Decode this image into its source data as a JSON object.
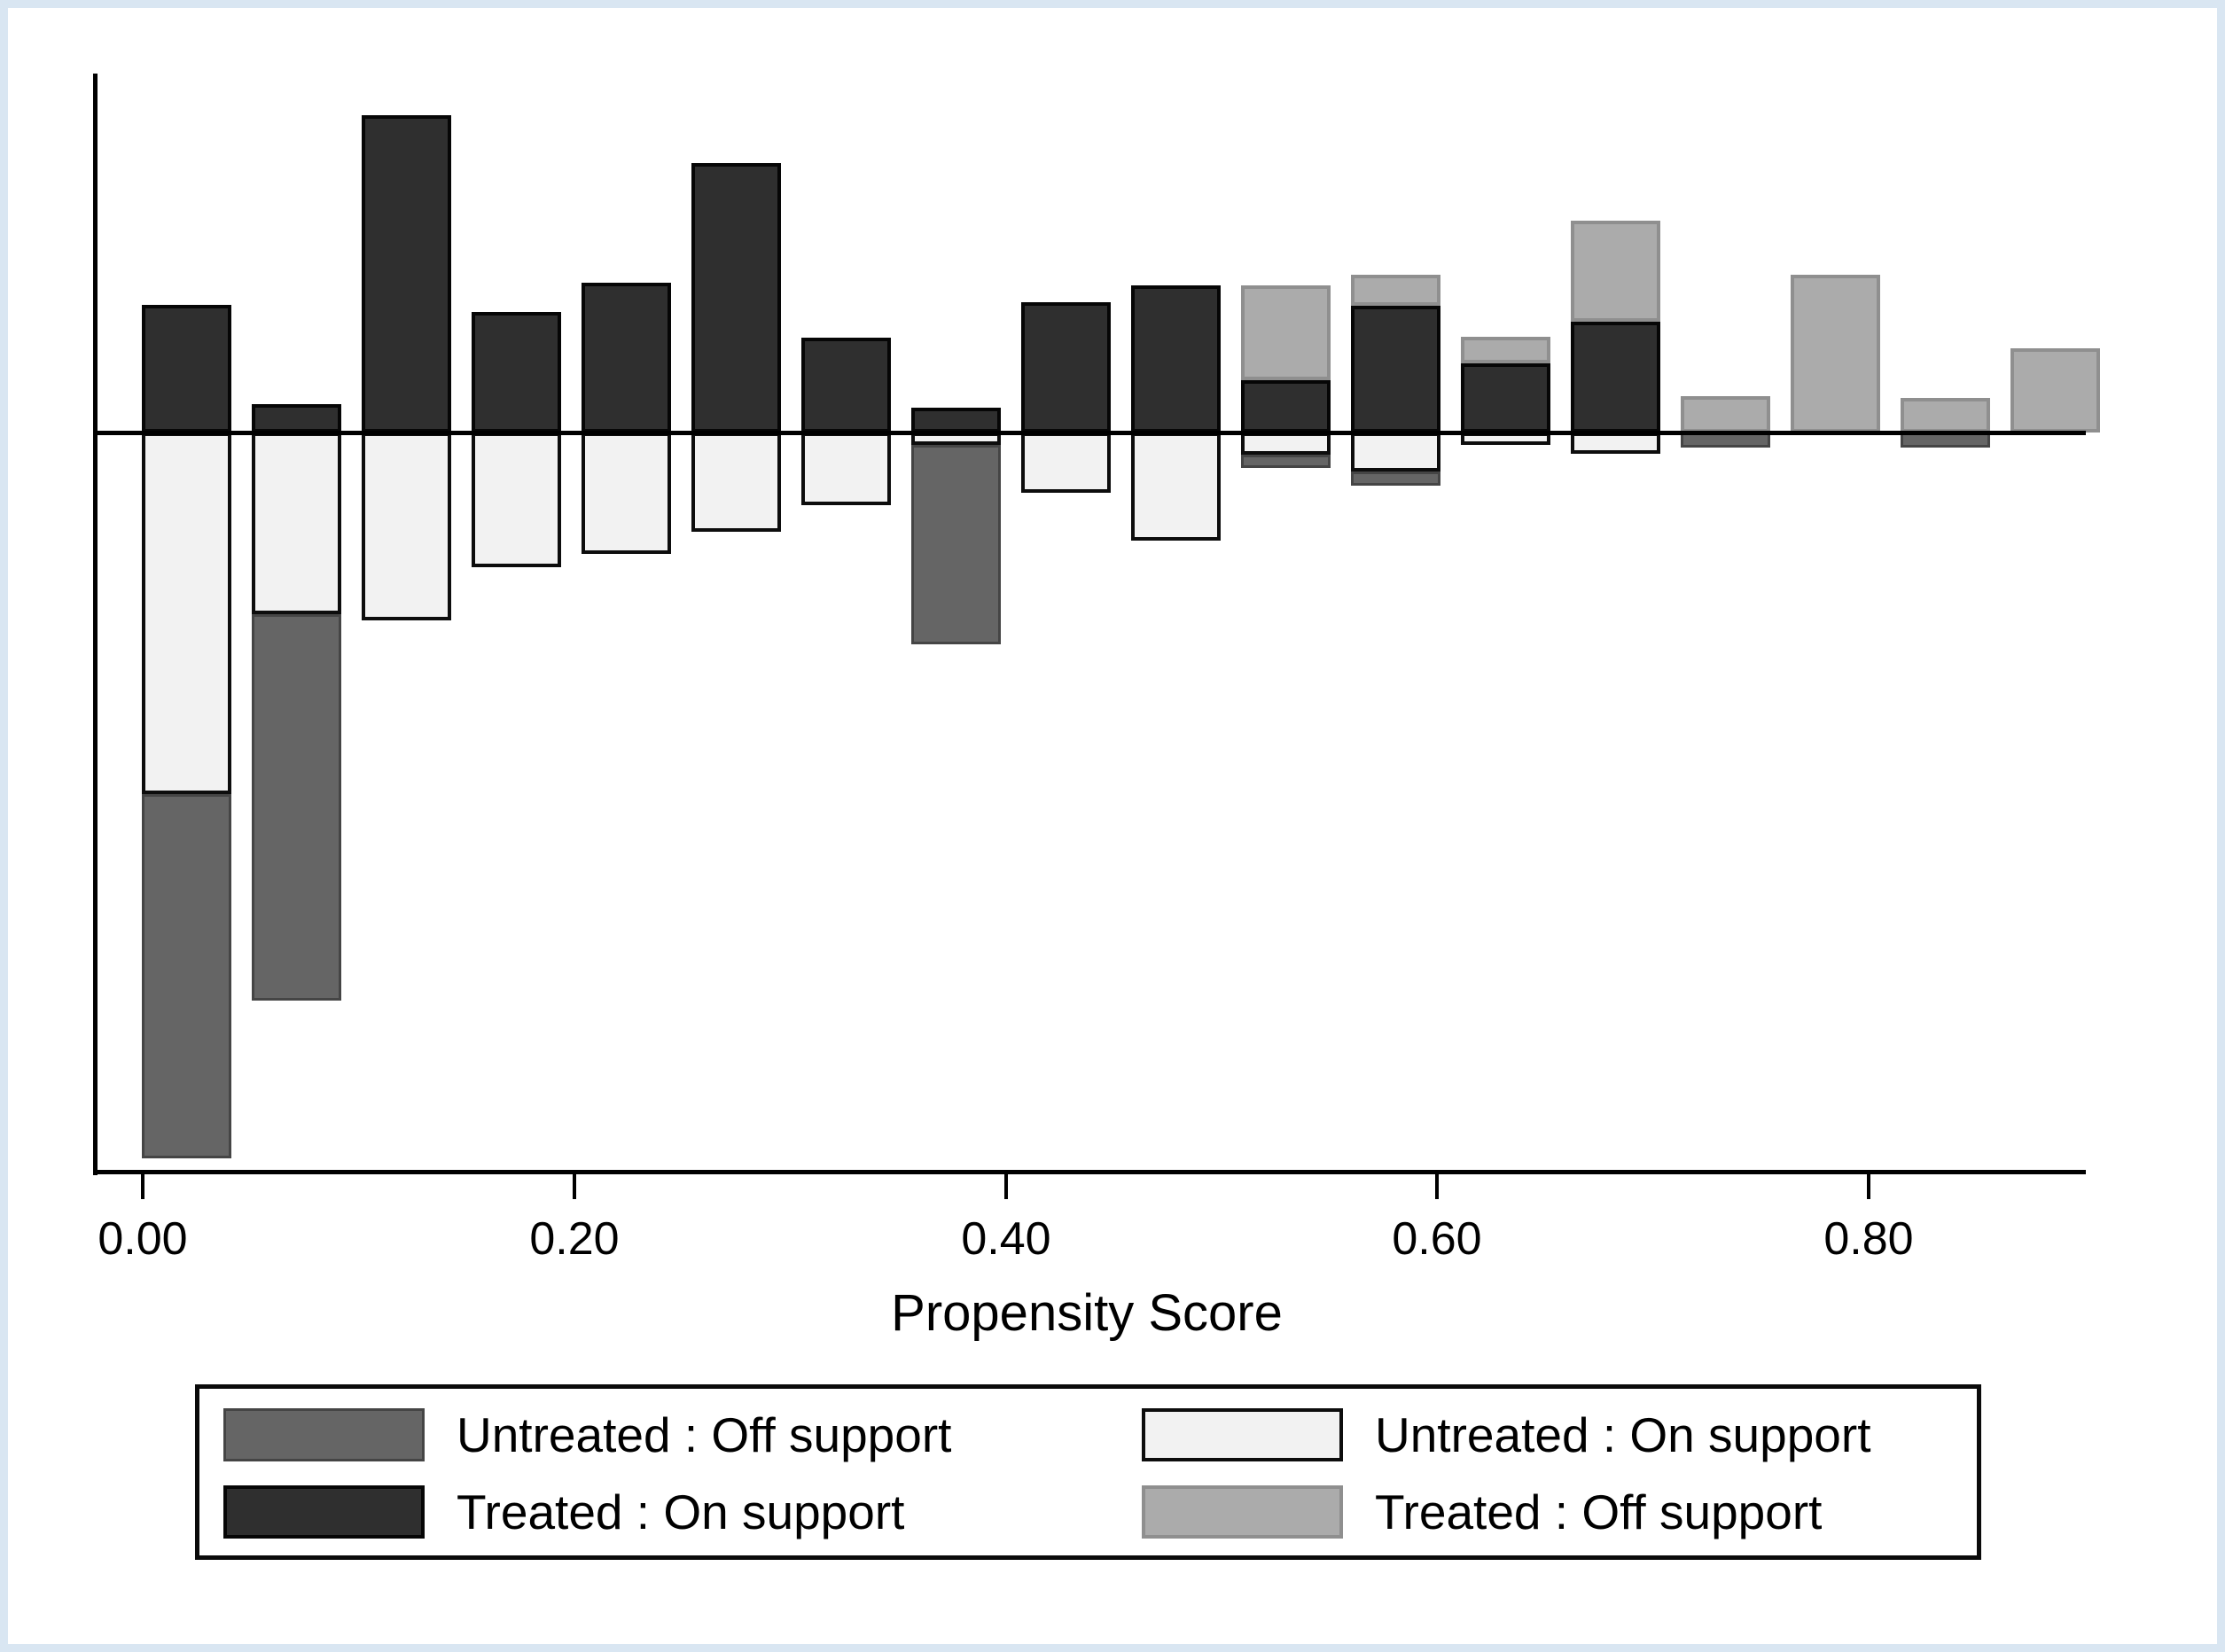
{
  "figure": {
    "border_color": "#d9e6f2",
    "background": "#ffffff"
  },
  "chart_data": {
    "type": "bar",
    "subtype": "overlap-histogram-mirrored",
    "title": "",
    "xlabel": "Propensity Score",
    "ylabel": "",
    "x_ticks": [
      "0.00",
      "0.20",
      "0.40",
      "0.60",
      "0.80"
    ],
    "x_tick_values": [
      0.0,
      0.2,
      0.4,
      0.6,
      0.8
    ],
    "xlim": [
      -0.023,
      0.975
    ],
    "bin_start": 0.0,
    "bin_width": 0.05,
    "bin_centers": [
      0.025,
      0.075,
      0.125,
      0.175,
      0.225,
      0.275,
      0.325,
      0.375,
      0.425,
      0.475,
      0.525,
      0.575,
      0.625,
      0.675,
      0.725,
      0.775,
      0.825,
      0.875
    ],
    "grid": false,
    "legend_position": "bottom",
    "orientation_note": "treated series drawn upward from zero line, untreated series drawn downward",
    "series": [
      {
        "name": "Treated : On support",
        "key": "treated_on",
        "direction": "up",
        "color": "#2f2f2f",
        "values": [
          1.44,
          0.32,
          3.58,
          1.36,
          1.69,
          3.04,
          1.07,
          0.28,
          1.47,
          1.66,
          0.59,
          1.43,
          0.78,
          1.25,
          0,
          0,
          0,
          0
        ]
      },
      {
        "name": "Treated : Off support",
        "key": "treated_off",
        "direction": "up",
        "color": "#ababab",
        "values": [
          0,
          0,
          0,
          0,
          0,
          0,
          0,
          0,
          0,
          0,
          1.07,
          0.35,
          0.3,
          1.14,
          0.41,
          1.78,
          0.39,
          0.95
        ]
      },
      {
        "name": "Untreated : On support",
        "key": "untreated_on",
        "direction": "down",
        "color": "#f2f2f2",
        "values": [
          4.08,
          2.05,
          2.12,
          1.52,
          1.37,
          1.12,
          0.82,
          0.14,
          0.68,
          1.22,
          0.25,
          0.44,
          0.14,
          0.24,
          0,
          0,
          0,
          0
        ]
      },
      {
        "name": "Untreated : Off support",
        "key": "untreated_off",
        "direction": "down",
        "color": "#656565",
        "values": [
          4.11,
          4.36,
          0,
          0,
          0,
          0,
          0,
          2.25,
          0,
          0,
          0.15,
          0.16,
          0,
          0,
          0.17,
          0,
          0.17,
          0
        ]
      }
    ]
  },
  "axis": {
    "x_title": "Propensity Score",
    "tick_labels": {
      "t0": "0.00",
      "t1": "0.20",
      "t2": "0.40",
      "t3": "0.60",
      "t4": "0.80"
    }
  },
  "legend": {
    "items": [
      {
        "label": "Untreated : Off support",
        "key": "untreated_off",
        "color": "#656565"
      },
      {
        "label": "Untreated : On support",
        "key": "untreated_on",
        "color": "#f2f2f2"
      },
      {
        "label": "Treated : On support",
        "key": "treated_on",
        "color": "#2f2f2f"
      },
      {
        "label": "Treated : Off support",
        "key": "treated_off",
        "color": "#ababab"
      }
    ]
  }
}
